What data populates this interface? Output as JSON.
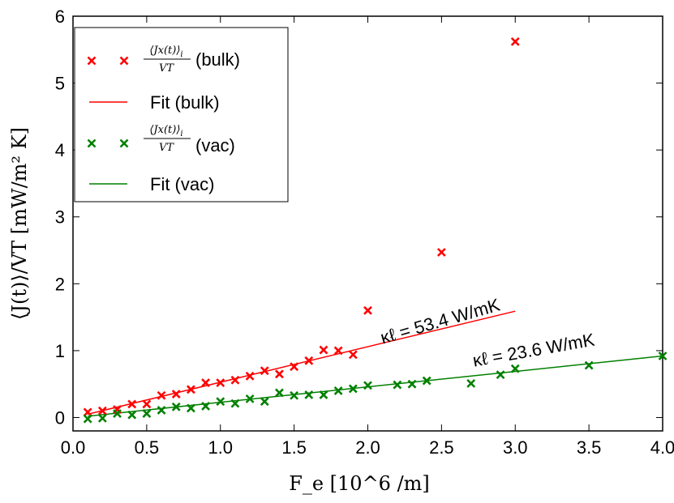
{
  "chart_data": {
    "type": "scatter",
    "title": "",
    "xlabel": "F_e  [10^6 /m]",
    "ylabel": "⟨J(t)⟩/VT  [mW/m² K]",
    "xlim": [
      0.0,
      4.0
    ],
    "ylim": [
      -0.2,
      6.0
    ],
    "xticks": [
      0.0,
      0.5,
      1.0,
      1.5,
      2.0,
      2.5,
      3.0,
      3.5,
      4.0
    ],
    "xtick_labels": [
      "0.0",
      "0.5",
      "1.0",
      "1.5",
      "2.0",
      "2.5",
      "3.0",
      "3.5",
      "4.0"
    ],
    "yticks": [
      0,
      1,
      2,
      3,
      4,
      5,
      6
    ],
    "ytick_labels": [
      "0",
      "1",
      "2",
      "3",
      "4",
      "5",
      "6"
    ],
    "legend_position": "top-left",
    "series": [
      {
        "name": "⟨Jx(t)⟩_i / VT (bulk)",
        "kind": "scatter",
        "color": "#ff0000",
        "x": [
          0.1,
          0.2,
          0.3,
          0.4,
          0.5,
          0.6,
          0.7,
          0.8,
          0.9,
          1.0,
          1.1,
          1.2,
          1.3,
          1.4,
          1.5,
          1.6,
          1.7,
          1.8,
          1.9,
          2.0,
          2.5,
          3.0
        ],
        "y": [
          0.08,
          0.1,
          0.12,
          0.2,
          0.2,
          0.33,
          0.35,
          0.42,
          0.52,
          0.52,
          0.56,
          0.62,
          0.7,
          0.65,
          0.76,
          0.85,
          1.01,
          1.0,
          0.94,
          1.6,
          2.47,
          5.62
        ]
      },
      {
        "name": "Fit (bulk)",
        "kind": "line",
        "color": "#ff0000",
        "x": [
          0.1,
          3.0
        ],
        "y": [
          0.05,
          1.59
        ]
      },
      {
        "name": "⟨Jx(t)⟩_i / VT (vac)",
        "kind": "scatter",
        "color": "#008000",
        "x": [
          0.1,
          0.2,
          0.3,
          0.4,
          0.5,
          0.6,
          0.7,
          0.8,
          0.9,
          1.0,
          1.1,
          1.2,
          1.3,
          1.4,
          1.5,
          1.6,
          1.7,
          1.8,
          1.9,
          2.0,
          2.2,
          2.3,
          2.4,
          2.7,
          2.9,
          3.0,
          3.5,
          4.0
        ],
        "y": [
          -0.02,
          -0.01,
          0.06,
          0.04,
          0.06,
          0.11,
          0.16,
          0.14,
          0.17,
          0.24,
          0.21,
          0.28,
          0.24,
          0.37,
          0.33,
          0.34,
          0.34,
          0.4,
          0.43,
          0.48,
          0.49,
          0.5,
          0.55,
          0.51,
          0.64,
          0.73,
          0.78,
          0.92
        ]
      },
      {
        "name": "Fit (vac)",
        "kind": "line",
        "color": "#008000",
        "x": [
          0.1,
          4.0
        ],
        "y": [
          0.02,
          0.92
        ]
      }
    ],
    "annotations": [
      {
        "text": "κℓ = 53.4 W/mK",
        "x": 2.1,
        "y": 1.1,
        "rotation_deg": -16
      },
      {
        "text": "κℓ = 23.6 W/mK",
        "x": 2.72,
        "y": 0.76,
        "rotation_deg": -10
      }
    ],
    "legend_labels": {
      "bulk_scatter_num": "⟨Jx(t)⟩",
      "bulk_scatter_sub": "i",
      "bulk_scatter_den": "VT",
      "bulk_scatter_suffix": "(bulk)",
      "bulk_fit": "Fit (bulk)",
      "vac_scatter_num": "⟨Jx(t)⟩",
      "vac_scatter_sub": "i",
      "vac_scatter_den": "VT",
      "vac_scatter_suffix": "(vac)",
      "vac_fit": "Fit (vac)"
    }
  }
}
